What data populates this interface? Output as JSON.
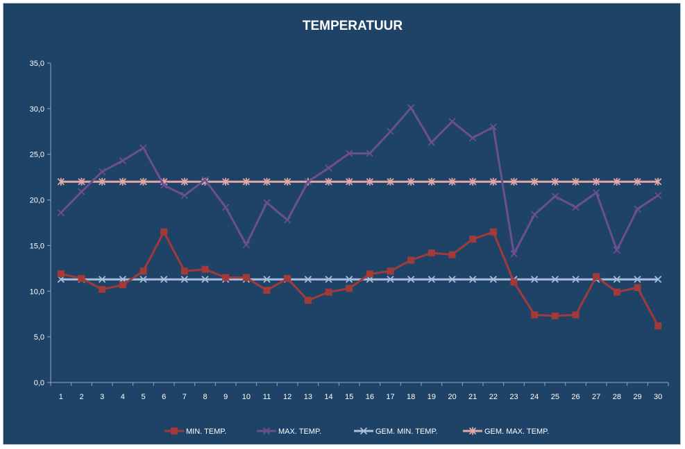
{
  "chart_data": {
    "type": "line",
    "title": "TEMPERATUUR",
    "xlabel": "",
    "ylabel": "",
    "x": [
      1,
      2,
      3,
      4,
      5,
      6,
      7,
      8,
      9,
      10,
      11,
      12,
      13,
      14,
      15,
      16,
      17,
      18,
      19,
      20,
      21,
      22,
      23,
      24,
      25,
      26,
      27,
      28,
      29,
      30
    ],
    "ylim": [
      0,
      35
    ],
    "yticks": [
      "0,0",
      "5,0",
      "10,0",
      "15,0",
      "20,0",
      "25,0",
      "30,0",
      "35,0"
    ],
    "grid": false,
    "legend": "bottom",
    "series": [
      {
        "name": "MIN. TEMP.",
        "color": "#a33a3a",
        "marker": "square",
        "values": [
          11.9,
          11.4,
          10.2,
          10.7,
          12.2,
          16.5,
          12.2,
          12.4,
          11.5,
          11.5,
          10.1,
          11.4,
          9.0,
          9.9,
          10.3,
          11.9,
          12.2,
          13.4,
          14.2,
          14.0,
          15.7,
          16.5,
          11.0,
          7.4,
          7.3,
          7.4,
          11.6,
          9.9,
          10.4,
          6.2
        ]
      },
      {
        "name": "MAX. TEMP.",
        "color": "#6b4f8f",
        "marker": "x",
        "values": [
          18.6,
          20.9,
          23.1,
          24.3,
          25.7,
          21.6,
          20.5,
          22.2,
          19.2,
          15.1,
          19.7,
          17.8,
          22.0,
          23.5,
          25.1,
          25.1,
          27.5,
          30.1,
          26.3,
          28.6,
          26.8,
          28.0,
          14.1,
          18.4,
          20.4,
          19.2,
          20.8,
          14.5,
          19.0,
          20.5
        ]
      },
      {
        "name": "GEM. MIN. TEMP.",
        "color": "#a7bfdc",
        "marker": "x",
        "values": [
          11.3,
          11.3,
          11.3,
          11.3,
          11.3,
          11.3,
          11.3,
          11.3,
          11.3,
          11.3,
          11.3,
          11.3,
          11.3,
          11.3,
          11.3,
          11.3,
          11.3,
          11.3,
          11.3,
          11.3,
          11.3,
          11.3,
          11.3,
          11.3,
          11.3,
          11.3,
          11.3,
          11.3,
          11.3,
          11.3
        ]
      },
      {
        "name": "GEM. MAX. TEMP.",
        "color": "#e0a8a8",
        "marker": "asterisk",
        "values": [
          22.0,
          22.0,
          22.0,
          22.0,
          22.0,
          22.0,
          22.0,
          22.0,
          22.0,
          22.0,
          22.0,
          22.0,
          22.0,
          22.0,
          22.0,
          22.0,
          22.0,
          22.0,
          22.0,
          22.0,
          22.0,
          22.0,
          22.0,
          22.0,
          22.0,
          22.0,
          22.0,
          22.0,
          22.0,
          22.0
        ]
      }
    ]
  }
}
